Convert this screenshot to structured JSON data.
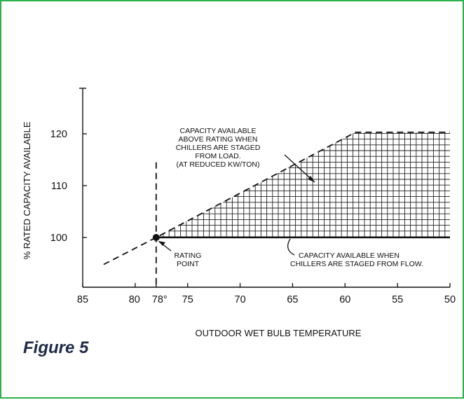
{
  "figure": {
    "caption": "Figure 5",
    "frame_color": "#2db24a"
  },
  "chart_data": {
    "type": "line",
    "title": "",
    "xlabel": "OUTDOOR WET BULB TEMPERATURE",
    "ylabel": "% RATED CAPACITY AVAILABLE",
    "x_axis_reversed": true,
    "xlim": [
      85,
      50
    ],
    "ylim": [
      90,
      130
    ],
    "x_ticks": [
      85,
      80,
      78,
      75,
      70,
      65,
      60,
      55,
      50
    ],
    "x_tick_labels": [
      "85",
      "80",
      "78°",
      "75",
      "70",
      "65",
      "60",
      "55",
      "50"
    ],
    "y_ticks": [
      100,
      110,
      120
    ],
    "y_tick_labels": [
      "100",
      "110",
      "120"
    ],
    "series": [
      {
        "style": "dashed",
        "points": [
          [
            83,
            94.8
          ],
          [
            78,
            100
          ],
          [
            59,
            120.3
          ],
          [
            50,
            120.3
          ]
        ]
      },
      {
        "style": "solid",
        "points": [
          [
            78,
            100
          ],
          [
            50,
            100
          ]
        ]
      }
    ],
    "design_line": {
      "x": 78,
      "y_top": 114.5,
      "style": "dashed"
    },
    "rating_point": {
      "x": 78,
      "y": 100
    },
    "shaded_region": {
      "x_from": 78,
      "x_to": 50,
      "y_lower": 100,
      "pattern": "grid"
    },
    "annotations": [
      {
        "id": "rating-point",
        "lines": [
          "RATING",
          "POINT"
        ]
      },
      {
        "id": "flow-staging",
        "lines": [
          "CAPACITY AVAILABLE WHEN",
          "CHILLERS ARE STAGED FROM FLOW."
        ]
      },
      {
        "id": "load-staging",
        "lines": [
          "CAPACITY AVAILABLE",
          "ABOVE RATING WHEN",
          "CHILLERS ARE STAGED",
          "FROM LOAD.",
          "(AT REDUCED KW/TON)"
        ]
      }
    ]
  }
}
